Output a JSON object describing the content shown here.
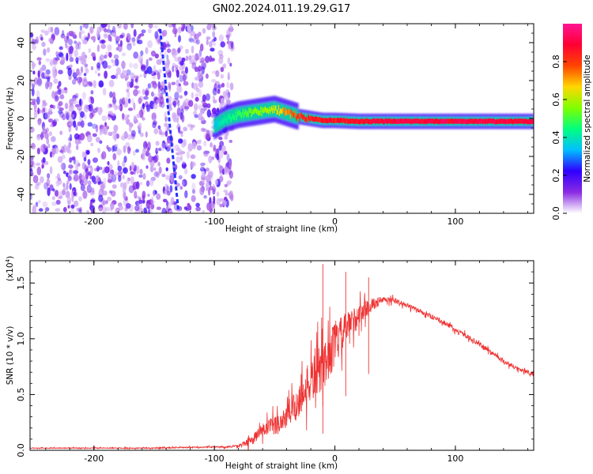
{
  "figure": {
    "title": "GN02.2024.011.19.29.G17"
  },
  "colorbar": {
    "label": "Normalized spectral amplitude",
    "ticks": [
      "0.0",
      "0.2",
      "0.4",
      "0.6",
      "0.8"
    ],
    "tick_values": [
      0.0,
      0.2,
      0.4,
      0.6,
      0.8
    ],
    "range": [
      0,
      1
    ],
    "stops": [
      "#ffffff",
      "#8a2be2",
      "#2f00ff",
      "#00bfff",
      "#00ff7f",
      "#7fff00",
      "#ffd700",
      "#ff4500",
      "#ff0033",
      "#ff1493"
    ]
  },
  "chart_data": [
    {
      "type": "heatmap",
      "name": "spectrogram",
      "title": "",
      "xlabel": "Height of straight line (km)",
      "ylabel": "Frequency (Hz)",
      "xlim": [
        -253,
        165
      ],
      "ylim": [
        -50,
        50
      ],
      "x_ticks": [
        -200,
        -100,
        0,
        100
      ],
      "x_tick_labels": [
        "-200",
        "-100",
        "0",
        "100"
      ],
      "y_ticks": [
        -40,
        -20,
        0,
        20,
        40
      ],
      "y_tick_labels": [
        "-40",
        "-20",
        "0",
        "20",
        "40"
      ],
      "noise_region_x": [
        -253,
        -85
      ],
      "ridge": {
        "x": [
          -100,
          -90,
          -80,
          -70,
          -60,
          -50,
          -40,
          -30,
          -20,
          -10,
          0,
          20,
          40,
          60,
          80,
          100,
          120,
          140,
          165
        ],
        "frequency": [
          -4,
          0,
          2,
          3,
          4,
          5,
          3,
          1,
          0,
          -1,
          -1,
          -1.5,
          -1.5,
          -1.5,
          -1.5,
          -1.5,
          -1.5,
          -1.5,
          -1.5
        ],
        "amplitude": [
          0.35,
          0.45,
          0.5,
          0.55,
          0.6,
          0.65,
          0.75,
          0.85,
          0.9,
          0.9,
          0.9,
          0.92,
          0.95,
          0.95,
          0.95,
          0.95,
          0.95,
          0.95,
          0.95
        ]
      },
      "streak": {
        "x": [
          -145,
          -130
        ],
        "frequency": [
          47,
          -48
        ]
      }
    },
    {
      "type": "line",
      "name": "snr",
      "title": "",
      "xlabel": "Height of straight line (km)",
      "ylabel": "SNR (10 * v/v)",
      "scale_label": "(x10",
      "scale_exponent": "4",
      "xlim": [
        -253,
        165
      ],
      "ylim": [
        0,
        1.7
      ],
      "x_ticks": [
        -200,
        -100,
        0,
        100
      ],
      "x_tick_labels": [
        "-200",
        "-100",
        "0",
        "100"
      ],
      "y_ticks": [
        0.0,
        0.5,
        1.0,
        1.5
      ],
      "y_tick_labels": [
        "0.0",
        "0.5",
        "1.0",
        "1.5"
      ],
      "color": "#ee3333",
      "series": [
        {
          "name": "SNR",
          "x": [
            -253,
            -200,
            -150,
            -100,
            -90,
            -80,
            -70,
            -60,
            -50,
            -40,
            -30,
            -20,
            -10,
            0,
            10,
            20,
            30,
            40,
            50,
            60,
            70,
            80,
            90,
            100,
            110,
            120,
            130,
            140,
            150,
            165
          ],
          "values": [
            0.02,
            0.02,
            0.02,
            0.03,
            0.03,
            0.04,
            0.08,
            0.18,
            0.22,
            0.3,
            0.45,
            0.62,
            0.75,
            0.95,
            1.1,
            1.22,
            1.3,
            1.35,
            1.34,
            1.3,
            1.25,
            1.2,
            1.15,
            1.08,
            1.02,
            0.95,
            0.88,
            0.8,
            0.74,
            0.68
          ],
          "noise": [
            0.004,
            0.004,
            0.005,
            0.006,
            0.008,
            0.01,
            0.04,
            0.07,
            0.09,
            0.12,
            0.16,
            0.2,
            0.22,
            0.2,
            0.14,
            0.1,
            0.06,
            0.03,
            0.025,
            0.02,
            0.02,
            0.02,
            0.02,
            0.02,
            0.02,
            0.02,
            0.02,
            0.02,
            0.02,
            0.02
          ]
        }
      ],
      "peaks": [
        {
          "x": -10,
          "value": 1.67
        },
        {
          "x": 9,
          "value": 1.6
        },
        {
          "x": 28,
          "value": 1.55
        }
      ]
    }
  ]
}
